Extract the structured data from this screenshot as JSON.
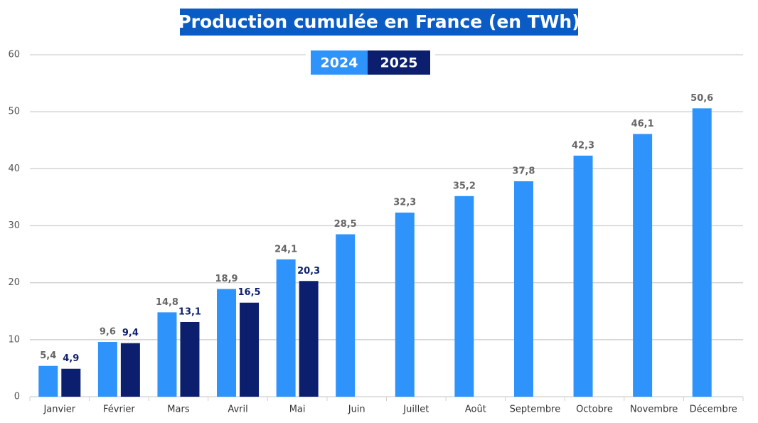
{
  "chart_data": {
    "type": "bar",
    "title": "Production cumulée en France (en TWh)",
    "categories": [
      "Janvier",
      "Février",
      "Mars",
      "Avril",
      "Mai",
      "Juin",
      "Juillet",
      "Août",
      "Septembre",
      "Octobre",
      "Novembre",
      "Décembre"
    ],
    "series": [
      {
        "name": "2024",
        "color": "#2e93fb",
        "label_color": "#666666",
        "values": [
          5.4,
          9.6,
          14.8,
          18.9,
          24.1,
          28.5,
          32.3,
          35.2,
          37.8,
          42.3,
          46.1,
          50.6
        ],
        "value_labels": [
          "5,4",
          "9,6",
          "14,8",
          "18,9",
          "24,1",
          "28,5",
          "32,3",
          "35,2",
          "37,8",
          "42,3",
          "46,1",
          "50,6"
        ]
      },
      {
        "name": "2025",
        "color": "#0c1f6e",
        "label_color": "#0c1f6e",
        "values": [
          4.9,
          9.4,
          13.1,
          16.5,
          20.3,
          null,
          null,
          null,
          null,
          null,
          null,
          null
        ],
        "value_labels": [
          "4,9",
          "9,4",
          "13,1",
          "16,5",
          "20,3",
          null,
          null,
          null,
          null,
          null,
          null,
          null
        ]
      }
    ],
    "ylim": [
      0,
      60
    ],
    "yticks": [
      0,
      10,
      20,
      30,
      40,
      50,
      60
    ],
    "grid": true
  }
}
